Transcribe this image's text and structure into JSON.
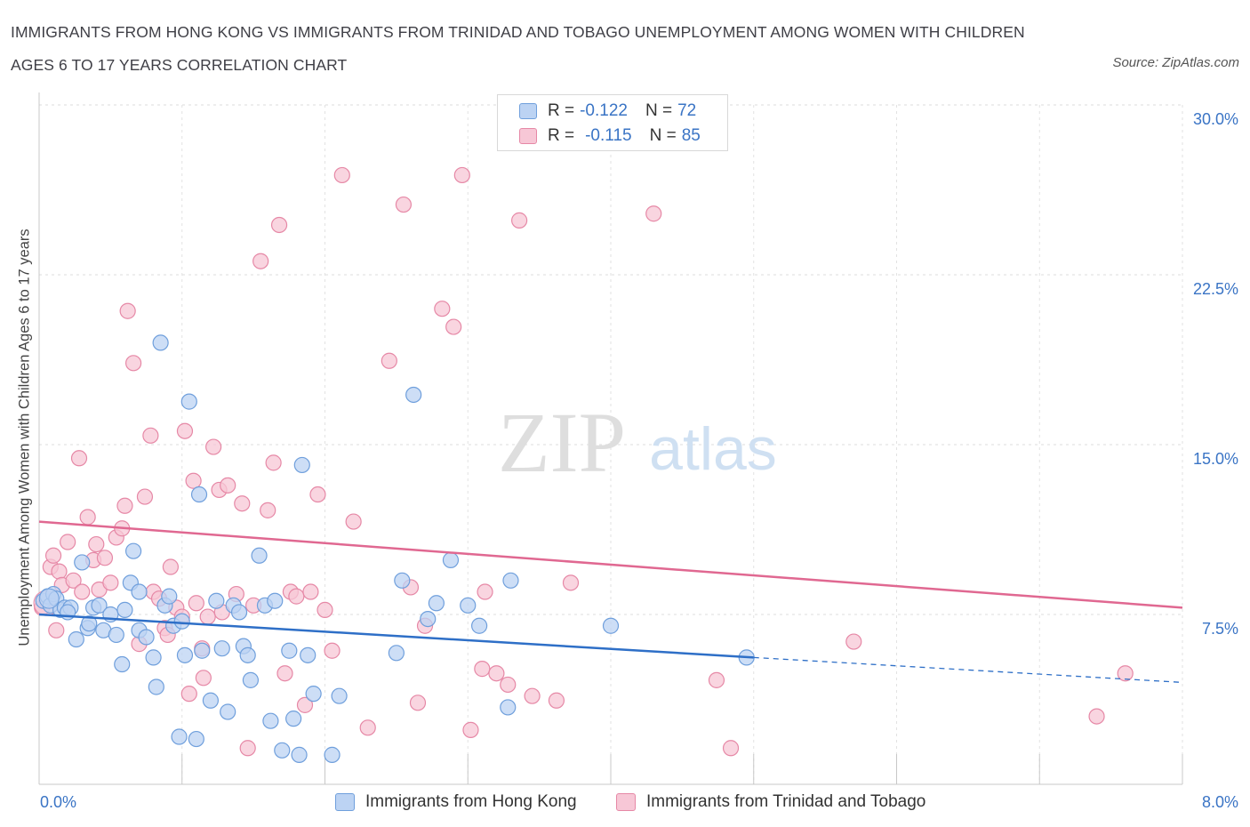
{
  "title": "IMMIGRANTS FROM HONG KONG VS IMMIGRANTS FROM TRINIDAD AND TOBAGO UNEMPLOYMENT AMONG WOMEN WITH CHILDREN AGES 6 TO 17 YEARS CORRELATION CHART",
  "source": "Source: ZipAtlas.com",
  "watermark": {
    "zip": "ZIP",
    "atlas": "atlas"
  },
  "legend": {
    "rows": [
      {
        "r_label": "R =",
        "r_value": "-0.122",
        "n_label": "N =",
        "n_value": "72"
      },
      {
        "r_label": "R =",
        "r_value": "-0.115",
        "n_label": "N =",
        "n_value": "85"
      }
    ]
  },
  "colors": {
    "hong_kong": "#6f9fdc",
    "hong_kong_fill": "#bcd3f3",
    "trinidad": "#e688a6",
    "trinidad_fill": "#f7c7d6",
    "hk_line": "#2e6fc7",
    "tt_line": "#e06891",
    "axis_text": "#3a74c5"
  },
  "chart_data": {
    "type": "scatter",
    "title": "IMMIGRANTS FROM HONG KONG VS IMMIGRANTS FROM TRINIDAD AND TOBAGO UNEMPLOYMENT AMONG WOMEN WITH CHILDREN AGES 6 TO 17 YEARS CORRELATION CHART",
    "xlabel": "",
    "ylabel": "Unemployment Among Women with Children Ages 6 to 17 years",
    "xlim": [
      0,
      8
    ],
    "ylim": [
      0,
      30
    ],
    "x_tick_labels": [
      "0.0%",
      "8.0%"
    ],
    "y_ticks": [
      7.5,
      15,
      22.5,
      30
    ],
    "y_tick_labels": [
      "7.5%",
      "15.0%",
      "22.5%",
      "30.0%"
    ],
    "grid": true,
    "legend_position": "top-center",
    "series": [
      {
        "name": "Immigrants from Hong Kong",
        "color": "#6f9fdc",
        "trend": {
          "x": [
            0,
            5.0
          ],
          "y": [
            7.5,
            5.6
          ],
          "dashed_to": [
            8.0,
            4.5
          ]
        },
        "points": [
          [
            0.03,
            8.1
          ],
          [
            0.06,
            8.3
          ],
          [
            0.08,
            7.9
          ],
          [
            0.1,
            8.4
          ],
          [
            0.12,
            8.2
          ],
          [
            0.15,
            7.7
          ],
          [
            0.18,
            7.8
          ],
          [
            0.22,
            7.8
          ],
          [
            0.26,
            6.4
          ],
          [
            0.3,
            9.8
          ],
          [
            0.34,
            6.9
          ],
          [
            0.38,
            7.8
          ],
          [
            0.42,
            7.9
          ],
          [
            0.45,
            6.8
          ],
          [
            0.5,
            7.5
          ],
          [
            0.54,
            6.6
          ],
          [
            0.58,
            5.3
          ],
          [
            0.6,
            7.7
          ],
          [
            0.64,
            8.9
          ],
          [
            0.66,
            10.3
          ],
          [
            0.7,
            6.8
          ],
          [
            0.75,
            6.5
          ],
          [
            0.8,
            5.6
          ],
          [
            0.82,
            4.3
          ],
          [
            0.85,
            19.5
          ],
          [
            0.88,
            7.9
          ],
          [
            0.91,
            8.3
          ],
          [
            0.94,
            7.0
          ],
          [
            0.98,
            2.1
          ],
          [
            1.02,
            5.7
          ],
          [
            1.05,
            16.9
          ],
          [
            1.1,
            2.0
          ],
          [
            1.12,
            12.8
          ],
          [
            1.14,
            5.9
          ],
          [
            1.2,
            3.7
          ],
          [
            1.24,
            8.1
          ],
          [
            1.28,
            6.0
          ],
          [
            1.32,
            3.2
          ],
          [
            1.36,
            7.9
          ],
          [
            1.4,
            7.6
          ],
          [
            1.43,
            6.1
          ],
          [
            1.46,
            5.7
          ],
          [
            1.48,
            4.6
          ],
          [
            1.54,
            10.1
          ],
          [
            1.58,
            7.9
          ],
          [
            1.62,
            2.8
          ],
          [
            1.65,
            8.1
          ],
          [
            1.7,
            1.5
          ],
          [
            1.75,
            5.9
          ],
          [
            1.78,
            2.9
          ],
          [
            1.82,
            1.3
          ],
          [
            1.84,
            14.1
          ],
          [
            1.88,
            5.7
          ],
          [
            1.92,
            4.0
          ],
          [
            2.1,
            3.9
          ],
          [
            2.05,
            1.3
          ],
          [
            2.5,
            5.8
          ],
          [
            2.54,
            9.0
          ],
          [
            2.62,
            17.2
          ],
          [
            2.72,
            7.3
          ],
          [
            2.78,
            8.0
          ],
          [
            2.88,
            9.9
          ],
          [
            3.0,
            7.9
          ],
          [
            3.08,
            7.0
          ],
          [
            3.28,
            3.4
          ],
          [
            3.3,
            9.0
          ],
          [
            4.0,
            7.0
          ],
          [
            4.95,
            5.6
          ],
          [
            0.35,
            7.1
          ],
          [
            0.7,
            8.5
          ],
          [
            1.0,
            7.2
          ],
          [
            0.2,
            7.6
          ]
        ]
      },
      {
        "name": "Immigrants from Trinidad and Tobago",
        "color": "#e688a6",
        "trend": {
          "x": [
            0,
            8.0
          ],
          "y": [
            11.6,
            7.8
          ]
        },
        "points": [
          [
            0.02,
            7.8
          ],
          [
            0.05,
            8.1
          ],
          [
            0.08,
            9.6
          ],
          [
            0.1,
            10.1
          ],
          [
            0.14,
            9.4
          ],
          [
            0.16,
            8.8
          ],
          [
            0.2,
            10.7
          ],
          [
            0.24,
            9.0
          ],
          [
            0.28,
            14.4
          ],
          [
            0.3,
            8.5
          ],
          [
            0.34,
            11.8
          ],
          [
            0.38,
            9.9
          ],
          [
            0.42,
            8.6
          ],
          [
            0.46,
            10.0
          ],
          [
            0.5,
            8.9
          ],
          [
            0.54,
            10.9
          ],
          [
            0.58,
            11.3
          ],
          [
            0.6,
            12.3
          ],
          [
            0.62,
            20.9
          ],
          [
            0.66,
            18.6
          ],
          [
            0.7,
            6.2
          ],
          [
            0.74,
            12.7
          ],
          [
            0.78,
            15.4
          ],
          [
            0.8,
            8.5
          ],
          [
            0.84,
            8.2
          ],
          [
            0.88,
            6.9
          ],
          [
            0.92,
            9.6
          ],
          [
            0.96,
            7.8
          ],
          [
            1.0,
            7.4
          ],
          [
            1.02,
            15.6
          ],
          [
            1.05,
            4.0
          ],
          [
            1.08,
            13.4
          ],
          [
            1.1,
            8.0
          ],
          [
            1.14,
            6.0
          ],
          [
            1.18,
            7.4
          ],
          [
            1.22,
            14.9
          ],
          [
            1.26,
            13.0
          ],
          [
            1.28,
            7.6
          ],
          [
            1.32,
            13.2
          ],
          [
            1.38,
            8.4
          ],
          [
            1.42,
            12.4
          ],
          [
            1.46,
            1.6
          ],
          [
            1.5,
            7.9
          ],
          [
            1.55,
            23.1
          ],
          [
            1.6,
            12.1
          ],
          [
            1.64,
            14.2
          ],
          [
            1.68,
            24.7
          ],
          [
            1.72,
            4.9
          ],
          [
            1.76,
            8.5
          ],
          [
            1.8,
            8.3
          ],
          [
            1.86,
            3.5
          ],
          [
            1.9,
            8.5
          ],
          [
            1.95,
            12.8
          ],
          [
            2.0,
            7.7
          ],
          [
            2.05,
            5.9
          ],
          [
            2.12,
            26.9
          ],
          [
            2.2,
            11.6
          ],
          [
            2.3,
            2.5
          ],
          [
            2.45,
            18.7
          ],
          [
            2.55,
            25.6
          ],
          [
            2.6,
            8.7
          ],
          [
            2.65,
            3.6
          ],
          [
            2.7,
            7.0
          ],
          [
            2.82,
            21.0
          ],
          [
            2.9,
            20.2
          ],
          [
            2.96,
            26.9
          ],
          [
            3.02,
            2.4
          ],
          [
            3.1,
            5.1
          ],
          [
            3.12,
            8.5
          ],
          [
            3.2,
            4.9
          ],
          [
            3.28,
            4.4
          ],
          [
            3.36,
            24.9
          ],
          [
            3.45,
            3.9
          ],
          [
            3.62,
            3.7
          ],
          [
            3.72,
            8.9
          ],
          [
            4.3,
            25.2
          ],
          [
            4.74,
            4.6
          ],
          [
            4.84,
            1.6
          ],
          [
            5.7,
            6.3
          ],
          [
            7.4,
            3.0
          ],
          [
            7.6,
            4.9
          ],
          [
            0.12,
            6.8
          ],
          [
            0.4,
            10.6
          ],
          [
            0.9,
            6.6
          ],
          [
            1.15,
            4.7
          ]
        ]
      }
    ]
  },
  "bottom_legend": {
    "hong_kong": "Immigrants from Hong Kong",
    "trinidad": "Immigrants from Trinidad and Tobago"
  }
}
